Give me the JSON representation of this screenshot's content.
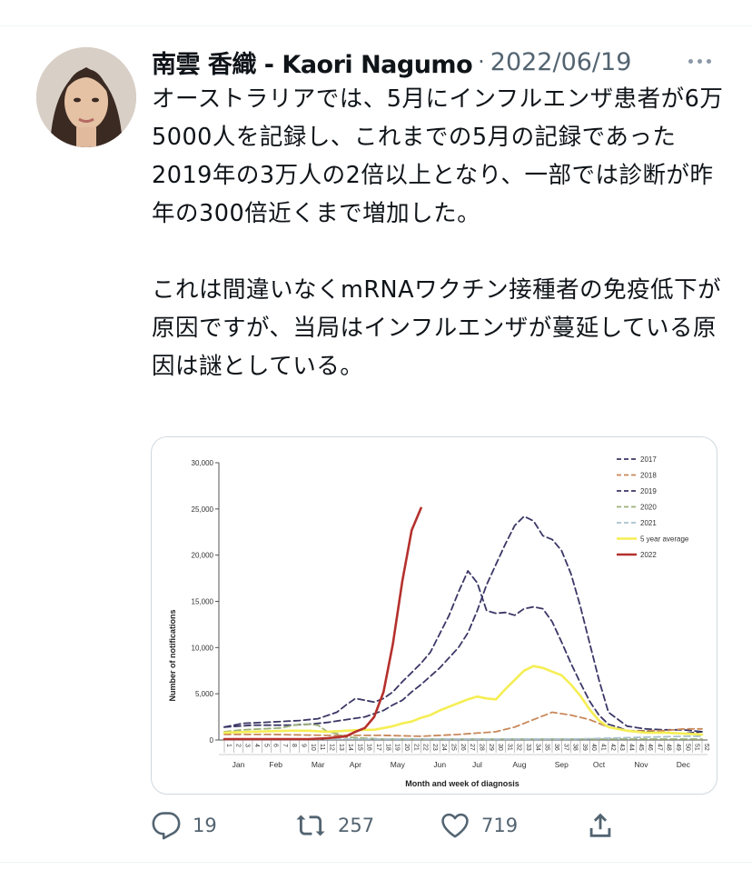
{
  "tweet": {
    "author_name": "南雲 香織 - Kaori Nagumo",
    "separator": "·",
    "date": "2022/06/19",
    "paragraph1": "オーストラリアでは、5月にインフルエンザ患者が6万5000人を記録し、これまでの5月の記録であった2019年の3万人の2倍以上となり、一部では診断が昨年の300倍近くまで増加した。",
    "paragraph2": "これは間違いなくmRNAワクチン接種者の免疫低下が原因ですが、当局はインフルエンザが蔓延している原因は謎としている。"
  },
  "actions": {
    "reply_count": "19",
    "retweet_count": "257",
    "like_count": "719"
  },
  "icons": {
    "more": "more-dots-icon",
    "reply": "reply-icon",
    "retweet": "retweet-icon",
    "like": "like-icon",
    "share": "share-icon"
  },
  "colors": {
    "text": "#0f1419",
    "secondary": "#536471",
    "border": "#cfd9de"
  },
  "chart_data": {
    "type": "line",
    "ylabel": "Number of notifications",
    "xlabel": "Month and week of diagnosis",
    "ylim": [
      0,
      30000
    ],
    "yticks": [
      "0",
      "5,000",
      "10,000",
      "15,000",
      "20,000",
      "25,000",
      "30,000"
    ],
    "week_labels": [
      "1",
      "2",
      "3",
      "4",
      "5",
      "6",
      "7",
      "8",
      "9",
      "10",
      "11",
      "12",
      "13",
      "14",
      "15",
      "16",
      "17",
      "18",
      "19",
      "20",
      "21",
      "22",
      "23",
      "24",
      "25",
      "26",
      "27",
      "28",
      "29",
      "30",
      "31",
      "32",
      "33",
      "34",
      "35",
      "36",
      "37",
      "38",
      "39",
      "40",
      "41",
      "42",
      "43",
      "44",
      "45",
      "46",
      "47",
      "48",
      "49",
      "50",
      "51",
      "52"
    ],
    "months": [
      {
        "label": "Jan",
        "week": 2.5
      },
      {
        "label": "Feb",
        "week": 6.5
      },
      {
        "label": "Mar",
        "week": 11
      },
      {
        "label": "Apr",
        "week": 15
      },
      {
        "label": "May",
        "week": 19.5
      },
      {
        "label": "Jun",
        "week": 24
      },
      {
        "label": "Jul",
        "week": 28
      },
      {
        "label": "Aug",
        "week": 32.5
      },
      {
        "label": "Sep",
        "week": 37
      },
      {
        "label": "Oct",
        "week": 41
      },
      {
        "label": "Nov",
        "week": 45.5
      },
      {
        "label": "Dec",
        "week": 50
      }
    ],
    "legend_position": "top-right",
    "series": [
      {
        "name": "2017",
        "color": "#3b3766",
        "dash": true,
        "x": [
          1,
          4,
          8,
          10,
          12,
          14,
          16,
          18,
          19,
          20,
          21,
          22,
          24,
          26,
          27,
          28,
          29,
          30,
          31,
          32,
          33,
          34,
          35,
          36,
          37,
          38,
          39,
          40,
          41,
          42,
          44,
          46,
          48,
          50,
          52
        ],
        "y": [
          1400,
          1600,
          1600,
          1700,
          1900,
          2200,
          2500,
          3200,
          3800,
          4300,
          5200,
          6000,
          7800,
          10000,
          11600,
          14000,
          16800,
          19000,
          21200,
          23200,
          24200,
          23700,
          22100,
          21700,
          20500,
          18000,
          14500,
          10500,
          6500,
          3000,
          1500,
          1200,
          1100,
          1100,
          900
        ]
      },
      {
        "name": "2018",
        "color": "#c8885a",
        "dash": true,
        "x": [
          1,
          6,
          12,
          18,
          22,
          26,
          30,
          32,
          34,
          36,
          38,
          40,
          42,
          44,
          46,
          48,
          50,
          52
        ],
        "y": [
          600,
          600,
          500,
          500,
          400,
          600,
          900,
          1400,
          2200,
          3000,
          2700,
          2200,
          1400,
          1000,
          1000,
          1000,
          1200,
          1200
        ]
      },
      {
        "name": "2019",
        "color": "#3b3766",
        "dash": true,
        "x": [
          1,
          3,
          5,
          7,
          9,
          11,
          13,
          14,
          15,
          16,
          17,
          18,
          19,
          20,
          21,
          22,
          23,
          24,
          25,
          26,
          27,
          28,
          29,
          30,
          31,
          32,
          33,
          34,
          35,
          36,
          37,
          38,
          39,
          40,
          41,
          42,
          43,
          44,
          46,
          48,
          50,
          52
        ],
        "y": [
          1400,
          1800,
          1900,
          2000,
          2100,
          2300,
          3000,
          3800,
          4500,
          4300,
          4100,
          4500,
          5200,
          6300,
          7300,
          8300,
          9500,
          11500,
          13500,
          16000,
          18300,
          17000,
          14000,
          13700,
          13800,
          13500,
          14200,
          14400,
          14200,
          12800,
          10600,
          8300,
          6200,
          4200,
          2700,
          1700,
          1400,
          1000,
          900,
          800,
          700,
          900
        ]
      },
      {
        "name": "2020",
        "color": "#9bb07a",
        "dash": true,
        "x": [
          1,
          3,
          5,
          7,
          9,
          10,
          11,
          12,
          13,
          14,
          16,
          18,
          20,
          24,
          30,
          36,
          42,
          46,
          50,
          52
        ],
        "y": [
          900,
          1100,
          1200,
          1300,
          1700,
          1700,
          1600,
          900,
          700,
          300,
          200,
          100,
          100,
          100,
          100,
          100,
          100,
          100,
          100,
          100
        ]
      },
      {
        "name": "2021",
        "color": "#a8c0cc",
        "dash": true,
        "x": [
          1,
          6,
          10,
          14,
          20,
          26,
          32,
          38,
          42,
          46,
          50,
          52
        ],
        "y": [
          100,
          100,
          100,
          100,
          100,
          100,
          100,
          100,
          200,
          300,
          400,
          400
        ]
      },
      {
        "name": "5 year average",
        "color": "#f5ee54",
        "dash": false,
        "x": [
          1,
          4,
          8,
          10,
          12,
          14,
          16,
          17,
          18,
          19,
          20,
          21,
          22,
          23,
          24,
          25,
          26,
          27,
          28,
          29,
          30,
          31,
          32,
          33,
          34,
          35,
          36,
          37,
          38,
          39,
          40,
          41,
          42,
          44,
          46,
          48,
          50,
          52
        ],
        "y": [
          800,
          900,
          1000,
          1000,
          900,
          1000,
          1100,
          1100,
          1300,
          1500,
          1800,
          2000,
          2400,
          2700,
          3200,
          3600,
          4000,
          4400,
          4700,
          4500,
          4400,
          5500,
          6500,
          7500,
          8000,
          7800,
          7400,
          7000,
          6000,
          4800,
          3300,
          2100,
          1400,
          1000,
          800,
          800,
          700,
          600
        ]
      },
      {
        "name": "2022",
        "color": "#b5302c",
        "dash": false,
        "x": [
          1,
          4,
          8,
          10,
          12,
          14,
          15,
          16,
          17,
          18,
          19,
          20,
          21,
          22
        ],
        "y": [
          100,
          100,
          100,
          100,
          200,
          400,
          900,
          1300,
          2500,
          5200,
          10400,
          17200,
          22700,
          25100
        ]
      }
    ]
  }
}
